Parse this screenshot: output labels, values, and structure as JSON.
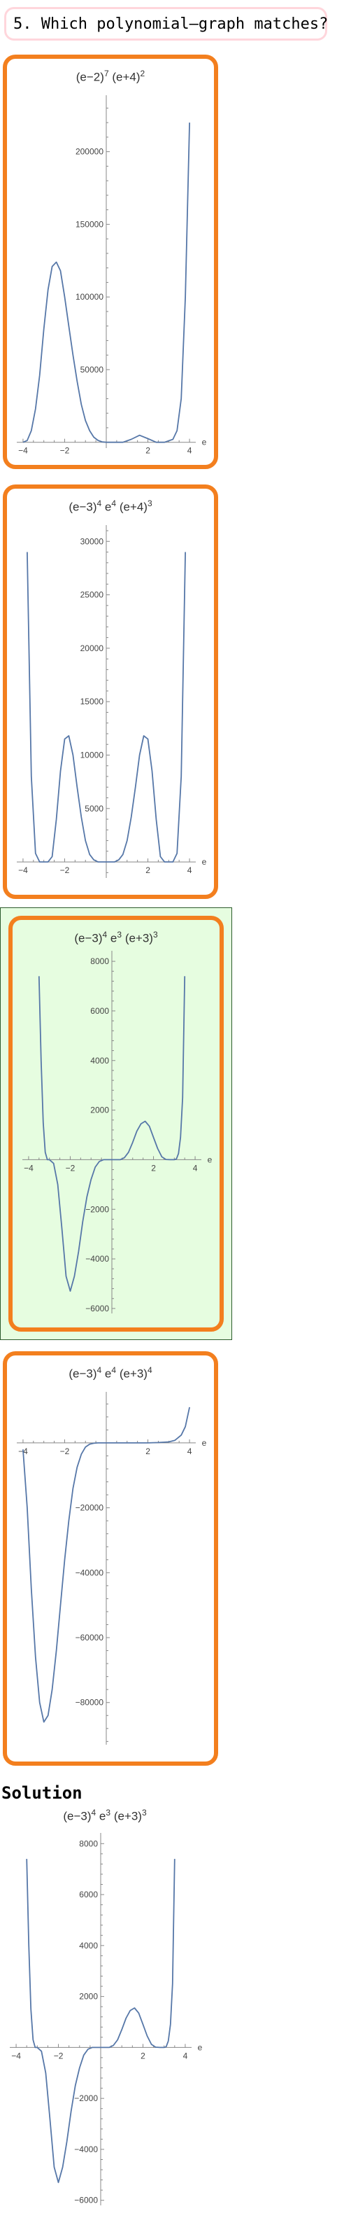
{
  "question": {
    "text": "5. Which polynomial–graph matches?"
  },
  "solution_heading": "Solution",
  "chart_data": [
    {
      "id": "choice1",
      "type": "line",
      "title": "(e−2)^7 (e+4)^2",
      "title_parts": [
        [
          "(e−2)",
          "7"
        ],
        [
          "(e+4)",
          "2"
        ]
      ],
      "xlabel": "e",
      "ylabel": "",
      "xlim": [
        -4.3,
        4.3
      ],
      "ylim": [
        -4000,
        235000
      ],
      "xticks": [
        -4,
        -2,
        2,
        4
      ],
      "xtick_labels": [
        "−4",
        "−2",
        "2",
        "4"
      ],
      "yticks": [
        50000,
        100000,
        150000,
        200000
      ],
      "ytick_labels": [
        "50000",
        "100000",
        "150000",
        "200000"
      ],
      "grid": false,
      "series": [
        {
          "name": "",
          "color": "#5677a8",
          "x": [
            -4.0,
            -3.8,
            -3.6,
            -3.4,
            -3.2,
            -3.0,
            -2.8,
            -2.6,
            -2.4,
            -2.2,
            -2.0,
            -1.8,
            -1.6,
            -1.4,
            -1.2,
            -1.0,
            -0.8,
            -0.6,
            -0.4,
            -0.2,
            0.0,
            0.4,
            0.8,
            1.2,
            1.6,
            2.0,
            2.4,
            2.8,
            3.2,
            3.4,
            3.6,
            3.8,
            4.0
          ],
          "y": [
            0,
            1200,
            8000,
            23000,
            46000,
            78000,
            105000,
            121000,
            124000,
            118000,
            100000,
            80000,
            60000,
            42000,
            26000,
            15000,
            8000,
            3500,
            1300,
            300,
            0,
            0,
            0,
            2000,
            4800,
            2500,
            0,
            0,
            2000,
            8000,
            30000,
            100000,
            220000
          ]
        }
      ]
    },
    {
      "id": "choice2",
      "type": "line",
      "title": "(e−3)^4 e^4 (e+4)^3",
      "title_parts": [
        [
          "(e−3)",
          "4"
        ],
        [
          "e",
          "4"
        ],
        [
          "(e+4)",
          "3"
        ]
      ],
      "xlabel": "e",
      "ylabel": "",
      "xlim": [
        -4.3,
        4.3
      ],
      "ylim": [
        -1500,
        31000
      ],
      "xticks": [
        -4,
        -2,
        2,
        4
      ],
      "xtick_labels": [
        "−4",
        "−2",
        "2",
        "4"
      ],
      "yticks": [
        5000,
        10000,
        15000,
        20000,
        25000,
        30000
      ],
      "ytick_labels": [
        "5000",
        "10000",
        "15000",
        "20000",
        "25000",
        "30000"
      ],
      "grid": false,
      "series": [
        {
          "name": "",
          "color": "#5677a8",
          "x": [
            -3.8,
            -3.6,
            -3.4,
            -3.2,
            -3.0,
            -2.8,
            -2.6,
            -2.4,
            -2.2,
            -2.0,
            -1.8,
            -1.6,
            -1.4,
            -1.2,
            -1.0,
            -0.8,
            -0.6,
            -0.4,
            -0.2,
            0.0,
            0.2,
            0.4,
            0.6,
            0.8,
            1.0,
            1.2,
            1.4,
            1.6,
            1.8,
            2.0,
            2.2,
            2.4,
            2.6,
            2.8,
            3.0,
            3.2,
            3.4,
            3.6,
            3.8
          ],
          "y": [
            29000,
            8000,
            800,
            0,
            0,
            0,
            500,
            4000,
            8500,
            11500,
            11800,
            10000,
            7000,
            4200,
            2000,
            700,
            200,
            0,
            0,
            0,
            0,
            0,
            200,
            700,
            2000,
            4200,
            7000,
            10000,
            11800,
            11500,
            8500,
            4000,
            500,
            0,
            0,
            0,
            800,
            8000,
            29000
          ]
        }
      ]
    },
    {
      "id": "choice3",
      "type": "line",
      "title": "(e−3)^4 e^3 (e+3)^3",
      "title_parts": [
        [
          "(e−3)",
          "4"
        ],
        [
          "e",
          "3"
        ],
        [
          "(e+3)",
          "3"
        ]
      ],
      "xlabel": "e",
      "ylabel": "",
      "xlim": [
        -4.3,
        4.3
      ],
      "ylim": [
        -6200,
        8200
      ],
      "xticks": [
        -4,
        -2,
        2,
        4
      ],
      "xtick_labels": [
        "−4",
        "−2",
        "2",
        "4"
      ],
      "yticks": [
        -6000,
        -4000,
        -2000,
        2000,
        4000,
        6000,
        8000
      ],
      "ytick_labels": [
        "−6000",
        "−4000",
        "−2000",
        "2000",
        "4000",
        "6000",
        "8000"
      ],
      "grid": false,
      "series": [
        {
          "name": "",
          "color": "#5677a8",
          "x": [
            -3.5,
            -3.4,
            -3.3,
            -3.2,
            -3.1,
            -3.0,
            -2.8,
            -2.6,
            -2.4,
            -2.2,
            -2.0,
            -1.8,
            -1.6,
            -1.4,
            -1.2,
            -1.0,
            -0.8,
            -0.6,
            -0.4,
            -0.2,
            0.0,
            0.2,
            0.4,
            0.6,
            0.8,
            1.0,
            1.2,
            1.4,
            1.6,
            1.8,
            2.0,
            2.2,
            2.4,
            2.6,
            2.8,
            3.0,
            3.1,
            3.2,
            3.3,
            3.4,
            3.5
          ],
          "y": [
            7400,
            4000,
            1500,
            300,
            0,
            0,
            -150,
            -1000,
            -2800,
            -4700,
            -5300,
            -4700,
            -3700,
            -2500,
            -1500,
            -800,
            -300,
            -70,
            0,
            0,
            0,
            0,
            0,
            80,
            300,
            700,
            1150,
            1450,
            1550,
            1350,
            900,
            450,
            120,
            10,
            0,
            0,
            30,
            250,
            900,
            2500,
            7400
          ]
        }
      ]
    },
    {
      "id": "choice4",
      "type": "line",
      "title": "(e−3)^4 e^4 (e+3)^4",
      "title_parts": [
        [
          "(e−3)",
          "4"
        ],
        [
          "e",
          "4"
        ],
        [
          "(e+3)",
          "4"
        ]
      ],
      "xlabel": "e",
      "ylabel": "",
      "xlim": [
        -4.3,
        4.3
      ],
      "ylim": [
        -93000,
        14000
      ],
      "xticks": [
        -4,
        -2,
        2,
        4
      ],
      "xtick_labels": [
        "−4",
        "−2",
        "2",
        "4"
      ],
      "yticks": [
        -80000,
        -60000,
        -40000,
        -20000
      ],
      "ytick_labels": [
        "−80000",
        "−60000",
        "−40000",
        "−20000"
      ],
      "grid": false,
      "series": [
        {
          "name": "",
          "color": "#5677a8",
          "x": [
            -4.0,
            -3.8,
            -3.6,
            -3.4,
            -3.2,
            -3.0,
            -2.8,
            -2.6,
            -2.4,
            -2.2,
            -2.0,
            -1.8,
            -1.6,
            -1.4,
            -1.2,
            -1.0,
            -0.8,
            -0.6,
            -0.4,
            -0.2,
            0.0,
            0.5,
            1.0,
            1.5,
            2.0,
            2.5,
            3.0,
            3.3,
            3.6,
            3.8,
            4.0
          ],
          "y": [
            -2000,
            -20000,
            -45000,
            -66000,
            -80000,
            -86000,
            -84000,
            -76000,
            -64000,
            -50000,
            -36000,
            -24000,
            -14000,
            -7500,
            -3500,
            -1300,
            -400,
            -100,
            0,
            0,
            0,
            0,
            0,
            0,
            0,
            100,
            300,
            800,
            2400,
            5000,
            11000
          ]
        }
      ]
    },
    {
      "id": "solution",
      "type": "line",
      "title": "(e−3)^4 e^3 (e+3)^3",
      "title_parts": [
        [
          "(e−3)",
          "4"
        ],
        [
          "e",
          "3"
        ],
        [
          "(e+3)",
          "3"
        ]
      ],
      "xlabel": "e",
      "ylabel": "",
      "xlim": [
        -4.3,
        4.3
      ],
      "ylim": [
        -6200,
        8200
      ],
      "xticks": [
        -4,
        -2,
        2,
        4
      ],
      "xtick_labels": [
        "−4",
        "−2",
        "2",
        "4"
      ],
      "yticks": [
        -6000,
        -4000,
        -2000,
        2000,
        4000,
        6000,
        8000
      ],
      "ytick_labels": [
        "−6000",
        "−4000",
        "−2000",
        "2000",
        "4000",
        "6000",
        "8000"
      ],
      "grid": false,
      "series": [
        {
          "name": "",
          "color": "#5677a8",
          "x": [
            -3.5,
            -3.4,
            -3.3,
            -3.2,
            -3.1,
            -3.0,
            -2.8,
            -2.6,
            -2.4,
            -2.2,
            -2.0,
            -1.8,
            -1.6,
            -1.4,
            -1.2,
            -1.0,
            -0.8,
            -0.6,
            -0.4,
            -0.2,
            0.0,
            0.2,
            0.4,
            0.6,
            0.8,
            1.0,
            1.2,
            1.4,
            1.6,
            1.8,
            2.0,
            2.2,
            2.4,
            2.6,
            2.8,
            3.0,
            3.1,
            3.2,
            3.3,
            3.4,
            3.5
          ],
          "y": [
            7400,
            4000,
            1500,
            300,
            0,
            0,
            -150,
            -1000,
            -2800,
            -4700,
            -5300,
            -4700,
            -3700,
            -2500,
            -1500,
            -800,
            -300,
            -70,
            0,
            0,
            0,
            0,
            0,
            80,
            300,
            700,
            1150,
            1450,
            1550,
            1350,
            900,
            450,
            120,
            10,
            0,
            0,
            30,
            250,
            900,
            2500,
            7400
          ]
        }
      ]
    }
  ]
}
